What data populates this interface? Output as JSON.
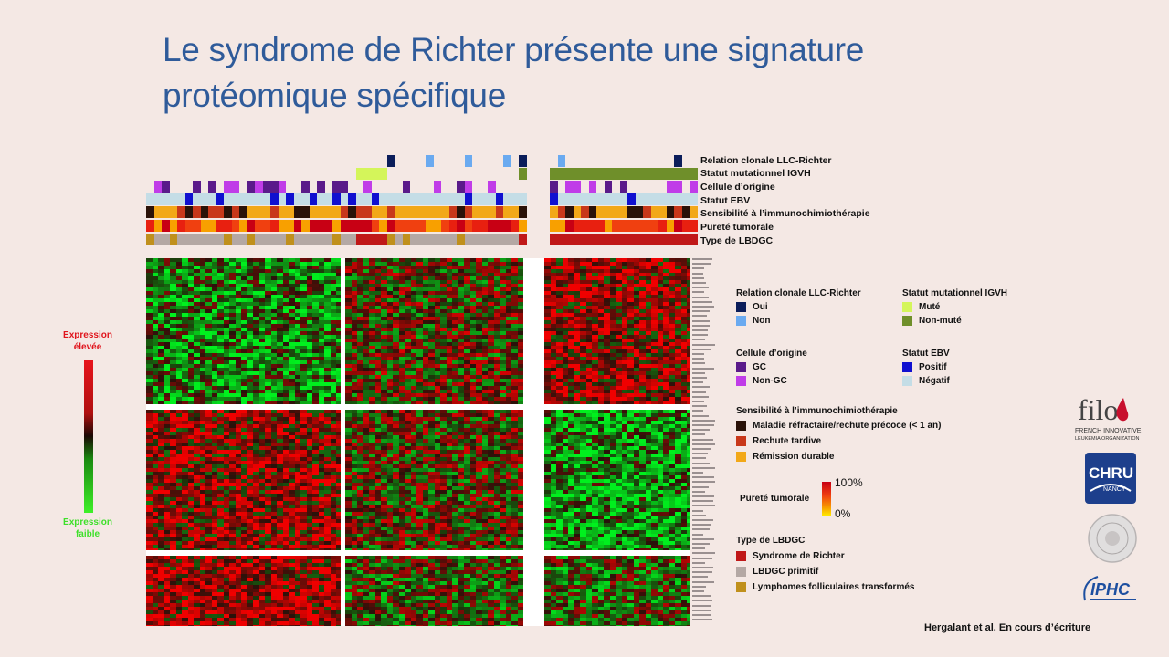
{
  "slide": {
    "title_line1": "Le syndrome de Richter présente une signature",
    "title_line2": "protéomique spécifique",
    "citation": "Hergalant et al. En cours d’écriture"
  },
  "annotation_tracks": [
    {
      "label": "Relation clonale LLC-Richter"
    },
    {
      "label": "Statut mutationnel IGVH"
    },
    {
      "label": "Cellule d’origine"
    },
    {
      "label": "Statut EBV"
    },
    {
      "label": "Sensibilité à l’immunochimiothérapie"
    },
    {
      "label": "Pureté tumorale"
    },
    {
      "label": "Type de LBDGC"
    }
  ],
  "scale": {
    "high": "Expression élevée",
    "low": "Expression faible",
    "colors": {
      "high": "#e8141c",
      "mid": "#1a0a05",
      "low": "#3ef028"
    }
  },
  "legend": {
    "clonal": {
      "title": "Relation clonale LLC-Richter",
      "items": [
        {
          "label": "Oui",
          "color": "#0b1d5a"
        },
        {
          "label": "Non",
          "color": "#6aaaf0"
        }
      ]
    },
    "igvh": {
      "title": "Statut mutationnel IGVH",
      "items": [
        {
          "label": "Muté",
          "color": "#d4f55a"
        },
        {
          "label": "Non-muté",
          "color": "#6f8f2a"
        }
      ]
    },
    "origin": {
      "title": "Cellule d’origine",
      "items": [
        {
          "label": "GC",
          "color": "#5a1a8a"
        },
        {
          "label": "Non-GC",
          "color": "#c03ce8"
        }
      ]
    },
    "ebv": {
      "title": "Statut EBV",
      "items": [
        {
          "label": "Positif",
          "color": "#1010d0"
        },
        {
          "label": "Négatif",
          "color": "#c4dde6"
        }
      ]
    },
    "sensibility": {
      "title": "Sensibilité à l’immunochimiothérapie",
      "items": [
        {
          "label": "Maladie réfractaire/rechute précoce (< 1 an)",
          "color": "#2a1208"
        },
        {
          "label": "Rechute tardive",
          "color": "#c8381a"
        },
        {
          "label": "Rémission durable",
          "color": "#f2a818"
        }
      ]
    },
    "purity": {
      "title": "Pureté tumorale",
      "max": "100%",
      "min": "0%"
    },
    "type": {
      "title": "Type de LBDGC",
      "items": [
        {
          "label": "Syndrome de Richter",
          "color": "#c01818"
        },
        {
          "label": "LBDGC primitif",
          "color": "#b4a8a4"
        },
        {
          "label": "Lymphomes folliculaires transformés",
          "color": "#c0901c"
        }
      ]
    }
  },
  "logos": {
    "filo_text": "filo",
    "filo_sub1": "FRENCH INNOVATIVE",
    "filo_sub2": "LEUKEMIA ORGANIZATION",
    "chru": "CHRU",
    "chru_sub": "NANCY",
    "iphc": "IPHC"
  }
}
